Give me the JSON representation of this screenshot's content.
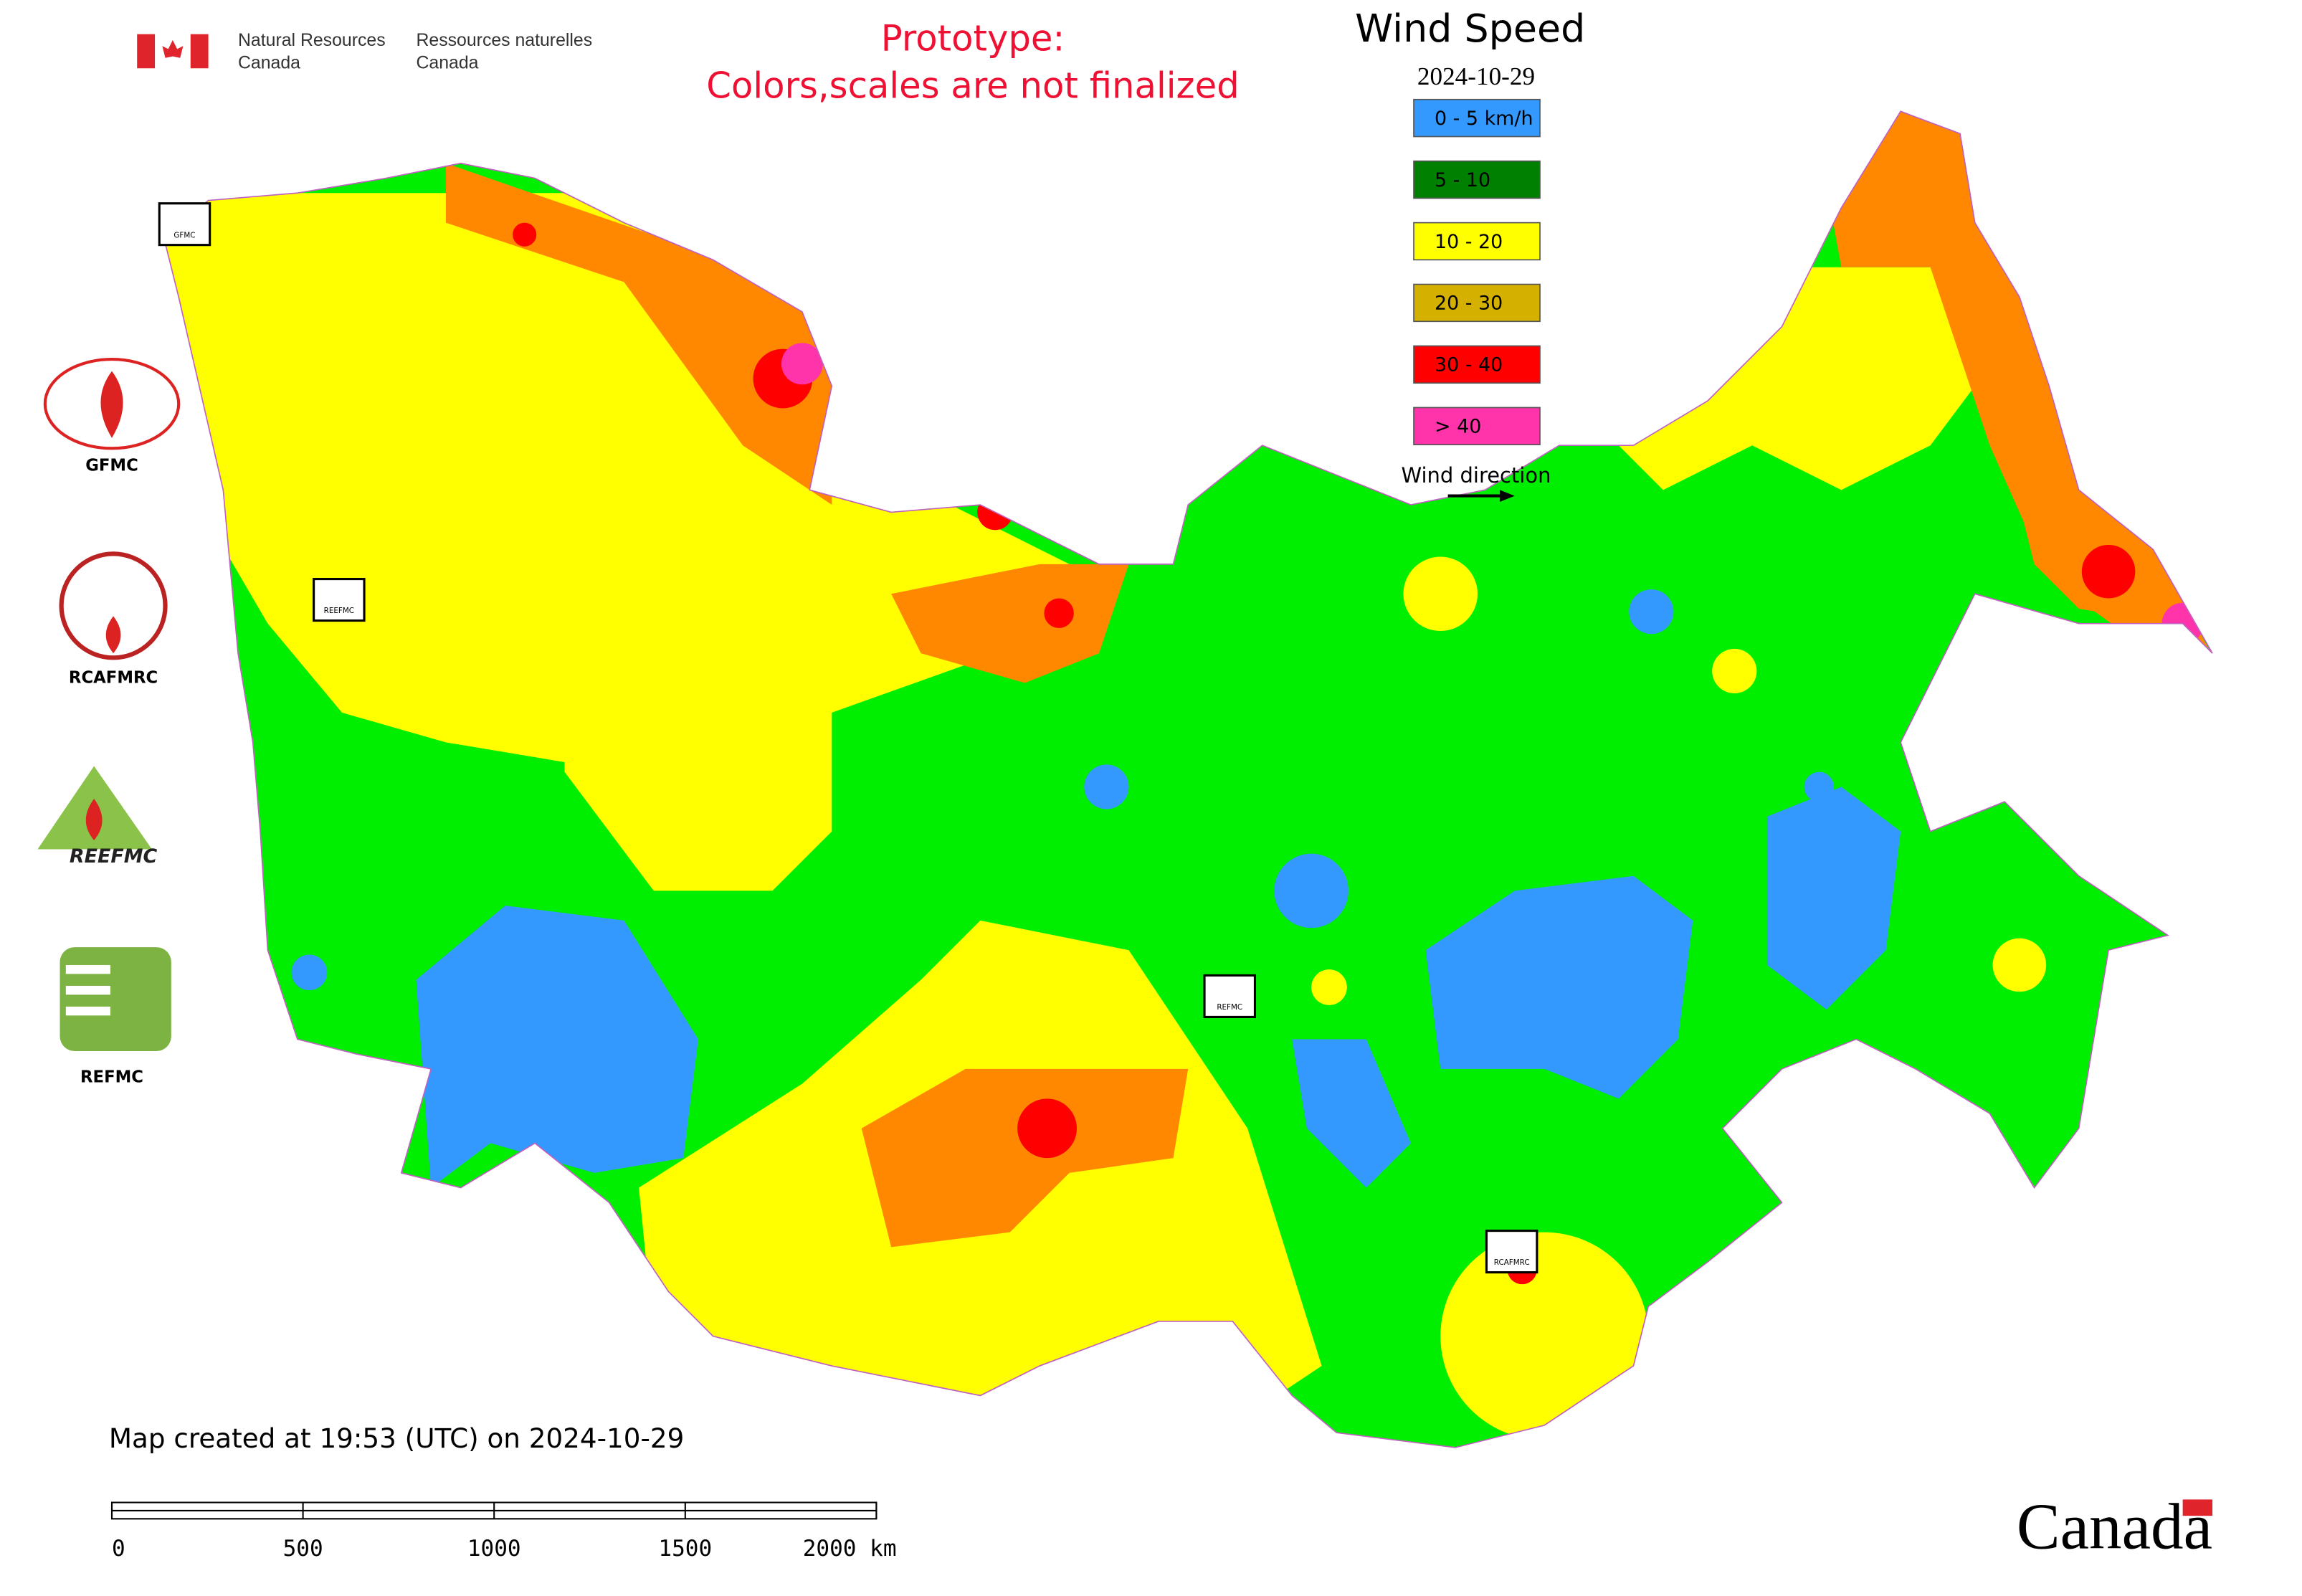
{
  "header": {
    "agency_en_line1": "Natural Resources",
    "agency_en_line2": "Canada",
    "agency_fr_line1": "Ressources naturelles",
    "agency_fr_line2": "Canada",
    "notice_line1": "Prototype:",
    "notice_line2": "Colors,scales are not finalized"
  },
  "legend": {
    "title": "Wind Speed",
    "date": "2024-10-29",
    "items": [
      {
        "label": "0 - 5 km/h",
        "color": "#3399ff"
      },
      {
        "label": "5 - 10",
        "color": "#008000"
      },
      {
        "label": "10 - 20",
        "color": "#ffff00"
      },
      {
        "label": "20 - 30",
        "color": "#d4b000"
      },
      {
        "label": "30 - 40",
        "color": "#ff0000"
      },
      {
        "label": "> 40",
        "color": "#ff33aa"
      }
    ],
    "direction_label": "Wind direction"
  },
  "logos": [
    "GFMC",
    "RCAFMRC",
    "REEFMC",
    "REFMC"
  ],
  "footer": {
    "created": "Map created at 19:53 (UTC) on 2024-10-29",
    "wordmark": "Canada"
  },
  "scale_bar": {
    "ticks": [
      "0",
      "500",
      "1000",
      "1500",
      "2000 km"
    ]
  }
}
